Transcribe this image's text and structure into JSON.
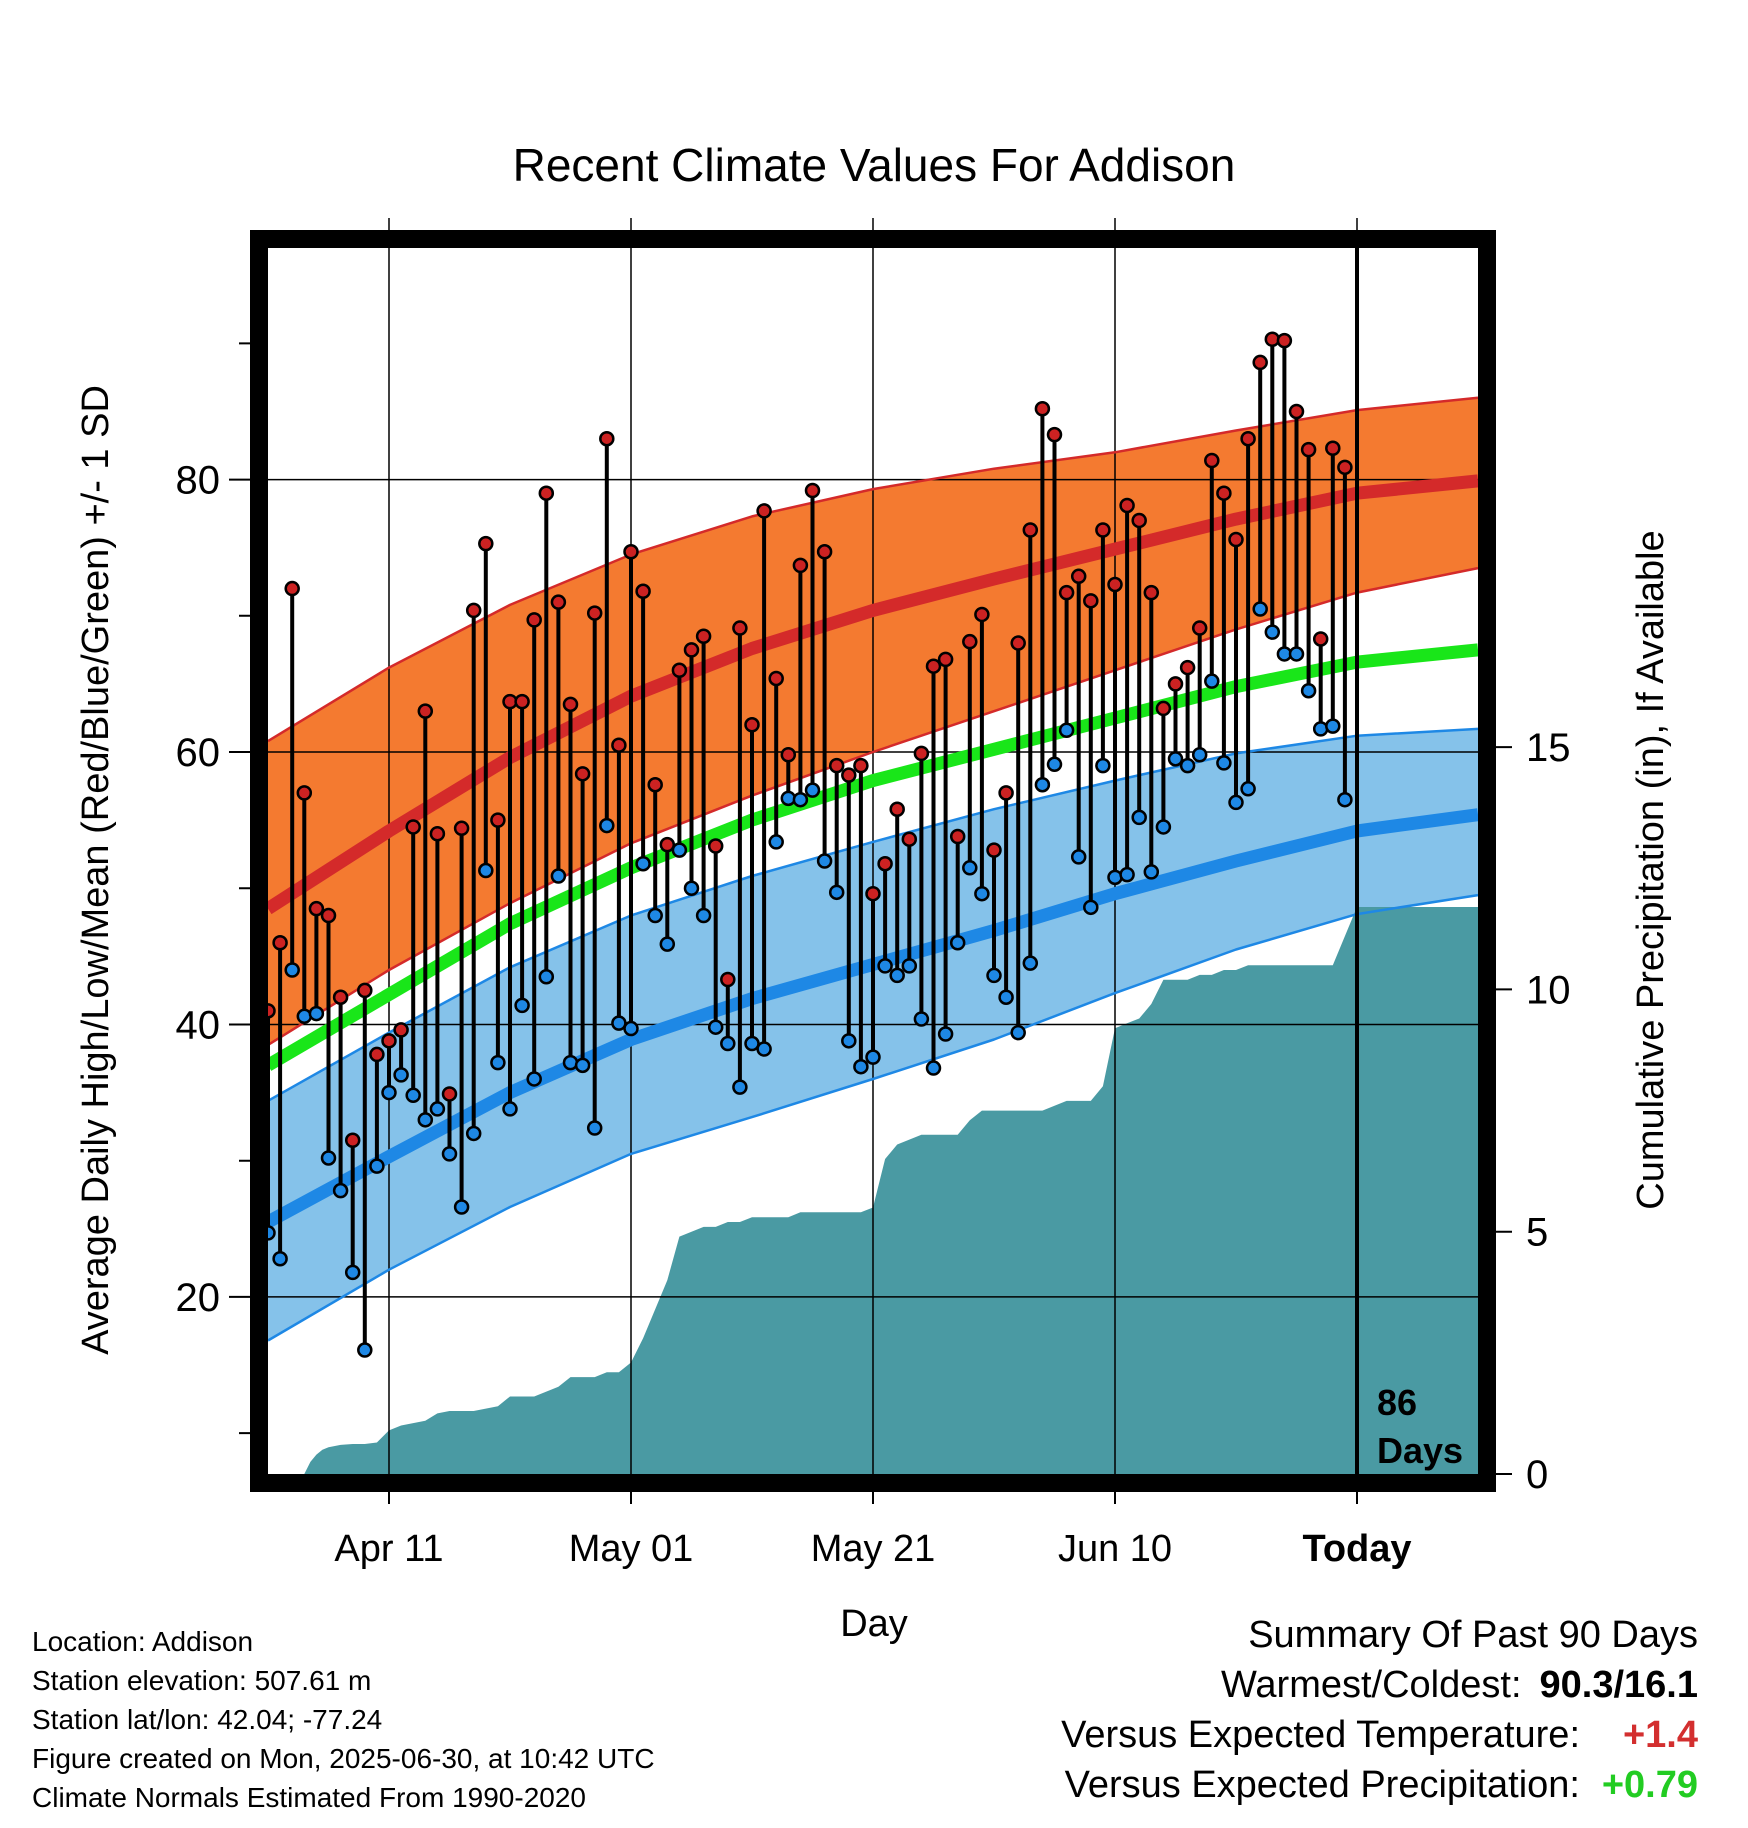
{
  "chart_data": {
    "type": "line",
    "title": "Recent Climate Values For Addison",
    "xlabel": "Day",
    "ylabel": "Average Daily High/Low/Mean (Red/Blue/Green) +/- 1 SD",
    "y2label": "Cumulative Precipitation (in), If Available",
    "ylim": [
      7,
      97
    ],
    "y2lim": [
      0,
      25.3
    ],
    "yticks": [
      20,
      40,
      60,
      80
    ],
    "y2ticks": [
      0,
      5,
      10,
      15
    ],
    "xlim": [
      0,
      100
    ],
    "xticks": [
      {
        "day": 10,
        "label": "Apr 11"
      },
      {
        "day": 30,
        "label": "May 01"
      },
      {
        "day": 50,
        "label": "May 21"
      },
      {
        "day": 70,
        "label": "Jun 10"
      },
      {
        "day": 90,
        "label": "Today"
      }
    ],
    "today_day": 90,
    "today_label_line1": "86",
    "today_label_line2": "Days",
    "grid": true,
    "normals": {
      "high_mean": {
        "days": [
          0,
          10,
          20,
          30,
          40,
          50,
          60,
          70,
          80,
          90,
          100
        ],
        "values": [
          48.5,
          54.2,
          59.6,
          64.1,
          67.6,
          70.4,
          72.7,
          74.9,
          77.1,
          79.0,
          79.9
        ]
      },
      "high_upper": {
        "days": [
          0,
          10,
          20,
          30,
          40,
          50,
          60,
          70,
          80,
          90,
          100
        ],
        "values": [
          60.8,
          66.2,
          70.8,
          74.5,
          77.3,
          79.3,
          80.8,
          82.0,
          83.6,
          85.1,
          86.0
        ]
      },
      "high_lower": {
        "days": [
          0,
          10,
          20,
          30,
          40,
          50,
          60,
          70,
          80,
          90,
          100
        ],
        "values": [
          38.5,
          44.0,
          48.9,
          53.3,
          56.8,
          60.0,
          63.0,
          66.0,
          69.0,
          71.7,
          73.5
        ]
      },
      "mean": {
        "days": [
          0,
          10,
          20,
          30,
          40,
          50,
          60,
          70,
          80,
          90,
          100
        ],
        "values": [
          37.0,
          42.2,
          47.4,
          51.5,
          55.0,
          57.9,
          60.2,
          62.5,
          64.8,
          66.6,
          67.5
        ]
      },
      "low_mean": {
        "days": [
          0,
          10,
          20,
          30,
          40,
          50,
          60,
          70,
          80,
          90,
          100
        ],
        "values": [
          25.5,
          30.3,
          35.0,
          38.9,
          41.9,
          44.4,
          46.9,
          49.6,
          52.0,
          54.2,
          55.4
        ]
      },
      "low_upper": {
        "days": [
          0,
          10,
          20,
          30,
          40,
          50,
          60,
          70,
          80,
          90,
          100
        ],
        "values": [
          34.4,
          39.4,
          44.2,
          48.0,
          50.9,
          53.4,
          55.8,
          57.9,
          59.9,
          61.2,
          61.7
        ]
      },
      "low_lower": {
        "days": [
          0,
          10,
          20,
          30,
          40,
          50,
          60,
          70,
          80,
          90,
          100
        ],
        "values": [
          16.8,
          22.0,
          26.6,
          30.5,
          33.2,
          36.0,
          38.9,
          42.3,
          45.5,
          48.1,
          49.5
        ]
      }
    },
    "series": [
      {
        "name": "High",
        "color": "#cc2222",
        "days": [
          0,
          1,
          2,
          3,
          4,
          5,
          6,
          7,
          8,
          9,
          10,
          11,
          12,
          13,
          14,
          15,
          16,
          17,
          18,
          19,
          20,
          21,
          22,
          23,
          24,
          25,
          26,
          27,
          28,
          29,
          30,
          31,
          32,
          33,
          34,
          35,
          36,
          37,
          38,
          39,
          40,
          41,
          42,
          43,
          44,
          45,
          46,
          47,
          48,
          49,
          50,
          51,
          52,
          53,
          54,
          55,
          56,
          57,
          58,
          59,
          60,
          61,
          62,
          63,
          64,
          65,
          66,
          67,
          68,
          69,
          70,
          71,
          72,
          73,
          74,
          75,
          76,
          77,
          78,
          79,
          80,
          81,
          82,
          83,
          84,
          85,
          86,
          87,
          88,
          89
        ],
        "values": [
          41,
          46,
          72,
          57,
          48.5,
          48,
          42,
          31.5,
          42.5,
          37.8,
          38.8,
          39.6,
          54.5,
          63,
          54,
          34.9,
          54.4,
          70.4,
          75.3,
          55,
          63.7,
          63.7,
          69.7,
          79,
          71,
          63.5,
          58.4,
          70.2,
          83,
          60.5,
          74.7,
          71.8,
          57.6,
          53.2,
          66,
          67.5,
          68.5,
          53.1,
          43.3,
          69.1,
          62,
          77.7,
          65.4,
          59.8,
          73.7,
          79.2,
          74.7,
          59,
          58.3,
          59,
          49.6,
          51.8,
          55.8,
          53.6,
          59.9,
          66.3,
          66.8,
          53.8,
          68.1,
          70.1,
          52.8,
          57,
          68,
          76.3,
          85.2,
          83.3,
          71.7,
          72.9,
          71.1,
          76.3,
          72.3,
          78.1,
          77,
          71.7,
          63.2,
          65,
          66.2,
          69.1,
          81.4,
          79,
          75.6,
          83,
          88.6,
          90.3,
          90.2,
          85,
          82.2,
          68.3,
          82.3,
          80.9
        ]
      },
      {
        "name": "Low",
        "color": "#1e88e5",
        "days": [
          0,
          1,
          2,
          3,
          4,
          5,
          6,
          7,
          8,
          9,
          10,
          11,
          12,
          13,
          14,
          15,
          16,
          17,
          18,
          19,
          20,
          21,
          22,
          23,
          24,
          25,
          26,
          27,
          28,
          29,
          30,
          31,
          32,
          33,
          34,
          35,
          36,
          37,
          38,
          39,
          40,
          41,
          42,
          43,
          44,
          45,
          46,
          47,
          48,
          49,
          50,
          51,
          52,
          53,
          54,
          55,
          56,
          57,
          58,
          59,
          60,
          61,
          62,
          63,
          64,
          65,
          66,
          67,
          68,
          69,
          70,
          71,
          72,
          73,
          74,
          75,
          76,
          77,
          78,
          79,
          80,
          81,
          82,
          83,
          84,
          85,
          86,
          87,
          88,
          89
        ],
        "values": [
          24.7,
          22.8,
          44,
          40.6,
          40.8,
          30.2,
          27.8,
          21.8,
          16.1,
          29.6,
          35,
          36.3,
          34.8,
          33,
          33.8,
          30.5,
          26.6,
          32,
          51.3,
          37.2,
          33.8,
          41.4,
          36,
          43.5,
          50.9,
          37.2,
          37,
          32.4,
          54.6,
          40.1,
          39.7,
          51.8,
          48,
          45.9,
          52.8,
          50,
          48,
          39.8,
          38.6,
          35.4,
          38.6,
          38.2,
          53.4,
          56.6,
          56.5,
          57.2,
          52,
          49.7,
          38.8,
          36.9,
          37.6,
          44.3,
          43.6,
          44.3,
          40.4,
          36.8,
          39.3,
          46,
          51.5,
          49.6,
          43.6,
          42,
          39.4,
          44.5,
          57.6,
          59.1,
          61.6,
          52.3,
          48.6,
          59,
          50.8,
          51,
          55.2,
          51.2,
          54.5,
          59.5,
          59,
          59.8,
          65.2,
          59.2,
          56.3,
          57.3,
          70.5,
          68.8,
          67.2,
          67.2,
          64.5,
          61.7,
          61.9,
          56.5
        ]
      }
    ],
    "precip": {
      "days": [
        0,
        3,
        3.5,
        4,
        4.5,
        5,
        6,
        7,
        8,
        9,
        10,
        11,
        12,
        13,
        14,
        15,
        16,
        17,
        18,
        19,
        20,
        21,
        22,
        23,
        24,
        25,
        26,
        27,
        28,
        29,
        30,
        31,
        32,
        33,
        34,
        35,
        36,
        37,
        38,
        39,
        40,
        41,
        42,
        43,
        44,
        45,
        46,
        47,
        48,
        49,
        50,
        51,
        52,
        53,
        54,
        55,
        56,
        57,
        58,
        59,
        60,
        61,
        62,
        63,
        64,
        65,
        66,
        67,
        68,
        69,
        70,
        71,
        72,
        73,
        74,
        75,
        76,
        77,
        78,
        79,
        80,
        81,
        82,
        83,
        84,
        85,
        86,
        87,
        88,
        89,
        90,
        91,
        92,
        93,
        94,
        95,
        96,
        97,
        98,
        99,
        100
      ],
      "values": [
        0,
        0,
        0.25,
        0.4,
        0.5,
        0.55,
        0.6,
        0.62,
        0.62,
        0.65,
        0.9,
        1.0,
        1.05,
        1.1,
        1.25,
        1.3,
        1.3,
        1.3,
        1.35,
        1.4,
        1.6,
        1.6,
        1.6,
        1.7,
        1.8,
        2.0,
        2.0,
        2.0,
        2.1,
        2.1,
        2.3,
        2.8,
        3.4,
        4.0,
        4.9,
        5.0,
        5.1,
        5.1,
        5.2,
        5.2,
        5.3,
        5.3,
        5.3,
        5.3,
        5.4,
        5.4,
        5.4,
        5.4,
        5.4,
        5.4,
        5.5,
        6.5,
        6.8,
        6.9,
        7.0,
        7.0,
        7.0,
        7.0,
        7.3,
        7.5,
        7.5,
        7.5,
        7.5,
        7.5,
        7.5,
        7.6,
        7.7,
        7.7,
        7.7,
        8.0,
        9.2,
        9.3,
        9.4,
        9.7,
        10.2,
        10.2,
        10.2,
        10.3,
        10.3,
        10.4,
        10.4,
        10.5,
        10.5,
        10.5,
        10.5,
        10.5,
        10.5,
        10.5,
        10.5,
        11.1,
        11.7,
        11.7,
        11.7,
        11.7,
        11.7,
        11.7,
        11.7,
        11.7,
        11.7,
        11.7,
        11.7
      ]
    }
  },
  "info": {
    "location": "Location: Addison",
    "elevation": "Station elevation: 507.61 m",
    "latlon": "Station lat/lon: 42.04; -77.24",
    "created": "Figure created on Mon, 2025-06-30, at 10:42 UTC",
    "normals": "Climate Normals Estimated From 1990-2020"
  },
  "summary": {
    "heading": "Summary Of Past 90 Days",
    "warmest_coldest_label": "Warmest/Coldest:",
    "warmest_coldest_value": "90.3/16.1",
    "temp_label": "Versus Expected Temperature:",
    "temp_value": "+1.4",
    "temp_color": "#d32f2f",
    "precip_label": "Versus Expected Precipitation:",
    "precip_value": "+0.79",
    "precip_color": "#22cc22"
  },
  "colors": {
    "high_band": "#f47a30",
    "high_line": "#d42a2a",
    "low_band": "#85c2ea",
    "low_line": "#1e88e5",
    "mean_line": "#19e619",
    "precip_fill": "#4a9aa3"
  }
}
